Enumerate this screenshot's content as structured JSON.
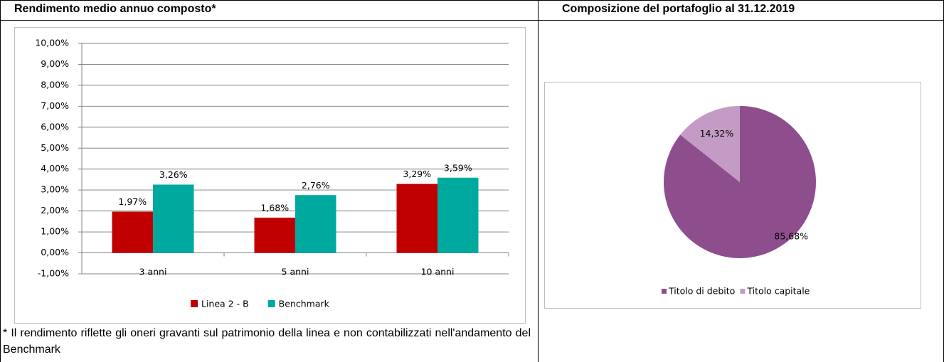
{
  "headers": [
    "Rendimento medio annuo composto*",
    "Composizione del portafoglio al 31.12.2019"
  ],
  "footnote": "* Il rendimento riflette gli oneri gravanti sul patrimonio della linea e non contabilizzati nell'andamento del Benchmark",
  "chart_data": [
    {
      "type": "bar",
      "categories": [
        "3 anni",
        "5 anni",
        "10 anni"
      ],
      "series": [
        {
          "name": "Linea 2 - B",
          "color": "#c00000",
          "values": [
            1.97,
            1.68,
            3.29
          ],
          "value_labels": [
            "1,97%",
            "1,68%",
            "3,29%"
          ]
        },
        {
          "name": "Benchmark",
          "color": "#00a99d",
          "values": [
            3.26,
            2.76,
            3.59
          ],
          "value_labels": [
            "3,26%",
            "2,76%",
            "3,59%"
          ]
        }
      ],
      "ylim": [
        -1,
        10
      ],
      "yticks": [
        {
          "value": -1,
          "label": "-1,00%"
        },
        {
          "value": 0,
          "label": "0,00%"
        },
        {
          "value": 1,
          "label": "1,00%"
        },
        {
          "value": 2,
          "label": "2,00%"
        },
        {
          "value": 3,
          "label": "3,00%"
        },
        {
          "value": 4,
          "label": "4,00%"
        },
        {
          "value": 5,
          "label": "5,00%"
        },
        {
          "value": 6,
          "label": "6,00%"
        },
        {
          "value": 7,
          "label": "7,00%"
        },
        {
          "value": 8,
          "label": "8,00%"
        },
        {
          "value": 9,
          "label": "9,00%"
        },
        {
          "value": 10,
          "label": "10,00%"
        }
      ],
      "grid": true,
      "legend": "bottom"
    },
    {
      "type": "pie",
      "categories": [
        "Titolo di debito",
        "Titolo capitale"
      ],
      "values": [
        85.68,
        14.32
      ],
      "value_labels": [
        "85,68%",
        "14,32%"
      ],
      "colors": [
        "#8e4e8e",
        "#c49bc4"
      ],
      "legend": "bottom"
    }
  ]
}
